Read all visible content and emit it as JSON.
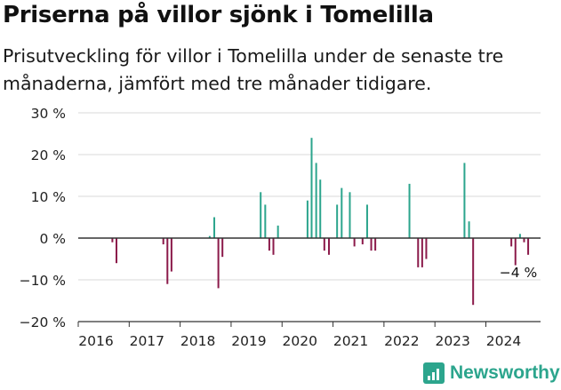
{
  "title": "Priserna på villor sjönk i Tomelilla",
  "subtitle": "Prisutveckling för villor i Tomelilla under de senaste tre månaderna, jämfört med tre månader tidigare.",
  "brand": {
    "name": "Newsworthy",
    "icon": "newsworthy-logo-icon",
    "color": "#2ca58d"
  },
  "colors": {
    "positive": "#2ca58d",
    "negative": "#8b1a4a",
    "grid": "#d9d9d9",
    "axis": "#333333"
  },
  "chart_data": {
    "type": "bar",
    "title": "Priserna på villor sjönk i Tomelilla",
    "ylim": [
      -20,
      30
    ],
    "yticks": [
      {
        "value": 30,
        "label": "30 %"
      },
      {
        "value": 20,
        "label": "20 %"
      },
      {
        "value": 10,
        "label": "10 %"
      },
      {
        "value": 0,
        "label": "0 %"
      },
      {
        "value": -10,
        "label": "−10 %"
      },
      {
        "value": -20,
        "label": "−20 %"
      }
    ],
    "xlim": [
      2016.0,
      2025.2
    ],
    "xticks": [
      "2016",
      "2017",
      "2018",
      "2019",
      "2020",
      "2021",
      "2022",
      "2023",
      "2024"
    ],
    "grid": true,
    "points": [
      {
        "x": 2016.67,
        "y": -1
      },
      {
        "x": 2016.75,
        "y": -6
      },
      {
        "x": 2017.67,
        "y": -1.5
      },
      {
        "x": 2017.75,
        "y": -11
      },
      {
        "x": 2017.83,
        "y": -8
      },
      {
        "x": 2018.58,
        "y": 0.5
      },
      {
        "x": 2018.67,
        "y": 5
      },
      {
        "x": 2018.75,
        "y": -12
      },
      {
        "x": 2018.83,
        "y": -4.5
      },
      {
        "x": 2019.58,
        "y": 11
      },
      {
        "x": 2019.67,
        "y": 8
      },
      {
        "x": 2019.75,
        "y": -3
      },
      {
        "x": 2019.83,
        "y": -4
      },
      {
        "x": 2019.92,
        "y": 3
      },
      {
        "x": 2020.5,
        "y": 9
      },
      {
        "x": 2020.58,
        "y": 24
      },
      {
        "x": 2020.67,
        "y": 18
      },
      {
        "x": 2020.75,
        "y": 14
      },
      {
        "x": 2020.83,
        "y": -3
      },
      {
        "x": 2020.92,
        "y": -4
      },
      {
        "x": 2021.08,
        "y": 8
      },
      {
        "x": 2021.17,
        "y": 12
      },
      {
        "x": 2021.33,
        "y": 11
      },
      {
        "x": 2021.42,
        "y": -2
      },
      {
        "x": 2021.58,
        "y": -1.5
      },
      {
        "x": 2021.67,
        "y": 8
      },
      {
        "x": 2021.75,
        "y": -3
      },
      {
        "x": 2021.83,
        "y": -3
      },
      {
        "x": 2022.5,
        "y": 13
      },
      {
        "x": 2022.67,
        "y": -7
      },
      {
        "x": 2022.75,
        "y": -7
      },
      {
        "x": 2022.83,
        "y": -5
      },
      {
        "x": 2023.58,
        "y": 18
      },
      {
        "x": 2023.67,
        "y": 4
      },
      {
        "x": 2023.75,
        "y": -16
      },
      {
        "x": 2024.5,
        "y": -2
      },
      {
        "x": 2024.58,
        "y": -6.5
      },
      {
        "x": 2024.67,
        "y": 1
      },
      {
        "x": 2024.75,
        "y": -1
      },
      {
        "x": 2024.83,
        "y": -4
      }
    ],
    "annotations": [
      {
        "x": 2024.83,
        "y": -4,
        "text": "−4 %"
      }
    ]
  }
}
